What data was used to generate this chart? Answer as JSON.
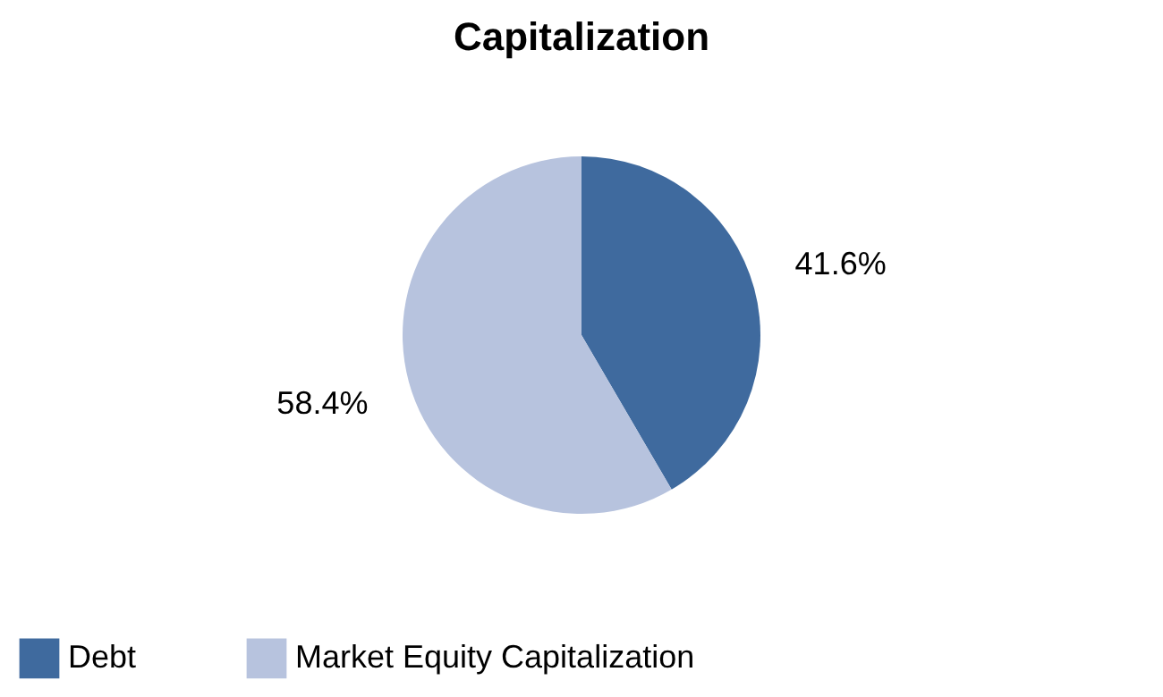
{
  "chart_data": {
    "type": "pie",
    "title": "Capitalization",
    "categories": [
      "Debt",
      "Market Equity Capitalization"
    ],
    "values": [
      41.6,
      58.4
    ],
    "colors": [
      "#3f6a9e",
      "#b7c3de"
    ],
    "value_labels": [
      "41.6%",
      "58.4%"
    ],
    "legend": "bottom"
  }
}
